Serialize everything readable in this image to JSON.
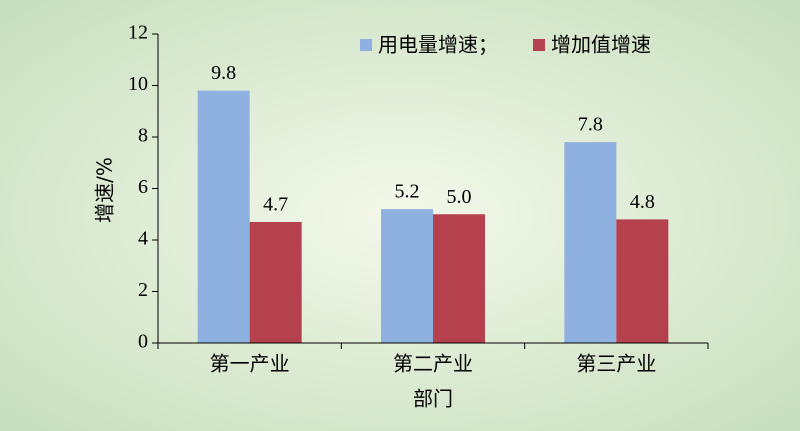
{
  "chart_data": {
    "type": "bar",
    "x_label": "部门",
    "y_label": "增速/%",
    "categories": [
      "第一产业",
      "第二产业",
      "第三产业"
    ],
    "series": [
      {
        "name": "用电量增速；",
        "color": "#8eb1e0",
        "values": [
          9.8,
          5.2,
          7.8
        ]
      },
      {
        "name": "增加值增速",
        "color": "#b5404e",
        "values": [
          4.7,
          5.0,
          4.8
        ],
        "value_labels": [
          "4.7",
          "5.0",
          "4.8"
        ]
      }
    ],
    "ylim": [
      0,
      12
    ],
    "yticks": [
      0,
      2,
      4,
      6,
      8,
      10,
      12
    ],
    "grid": false,
    "legend": "top-right"
  }
}
